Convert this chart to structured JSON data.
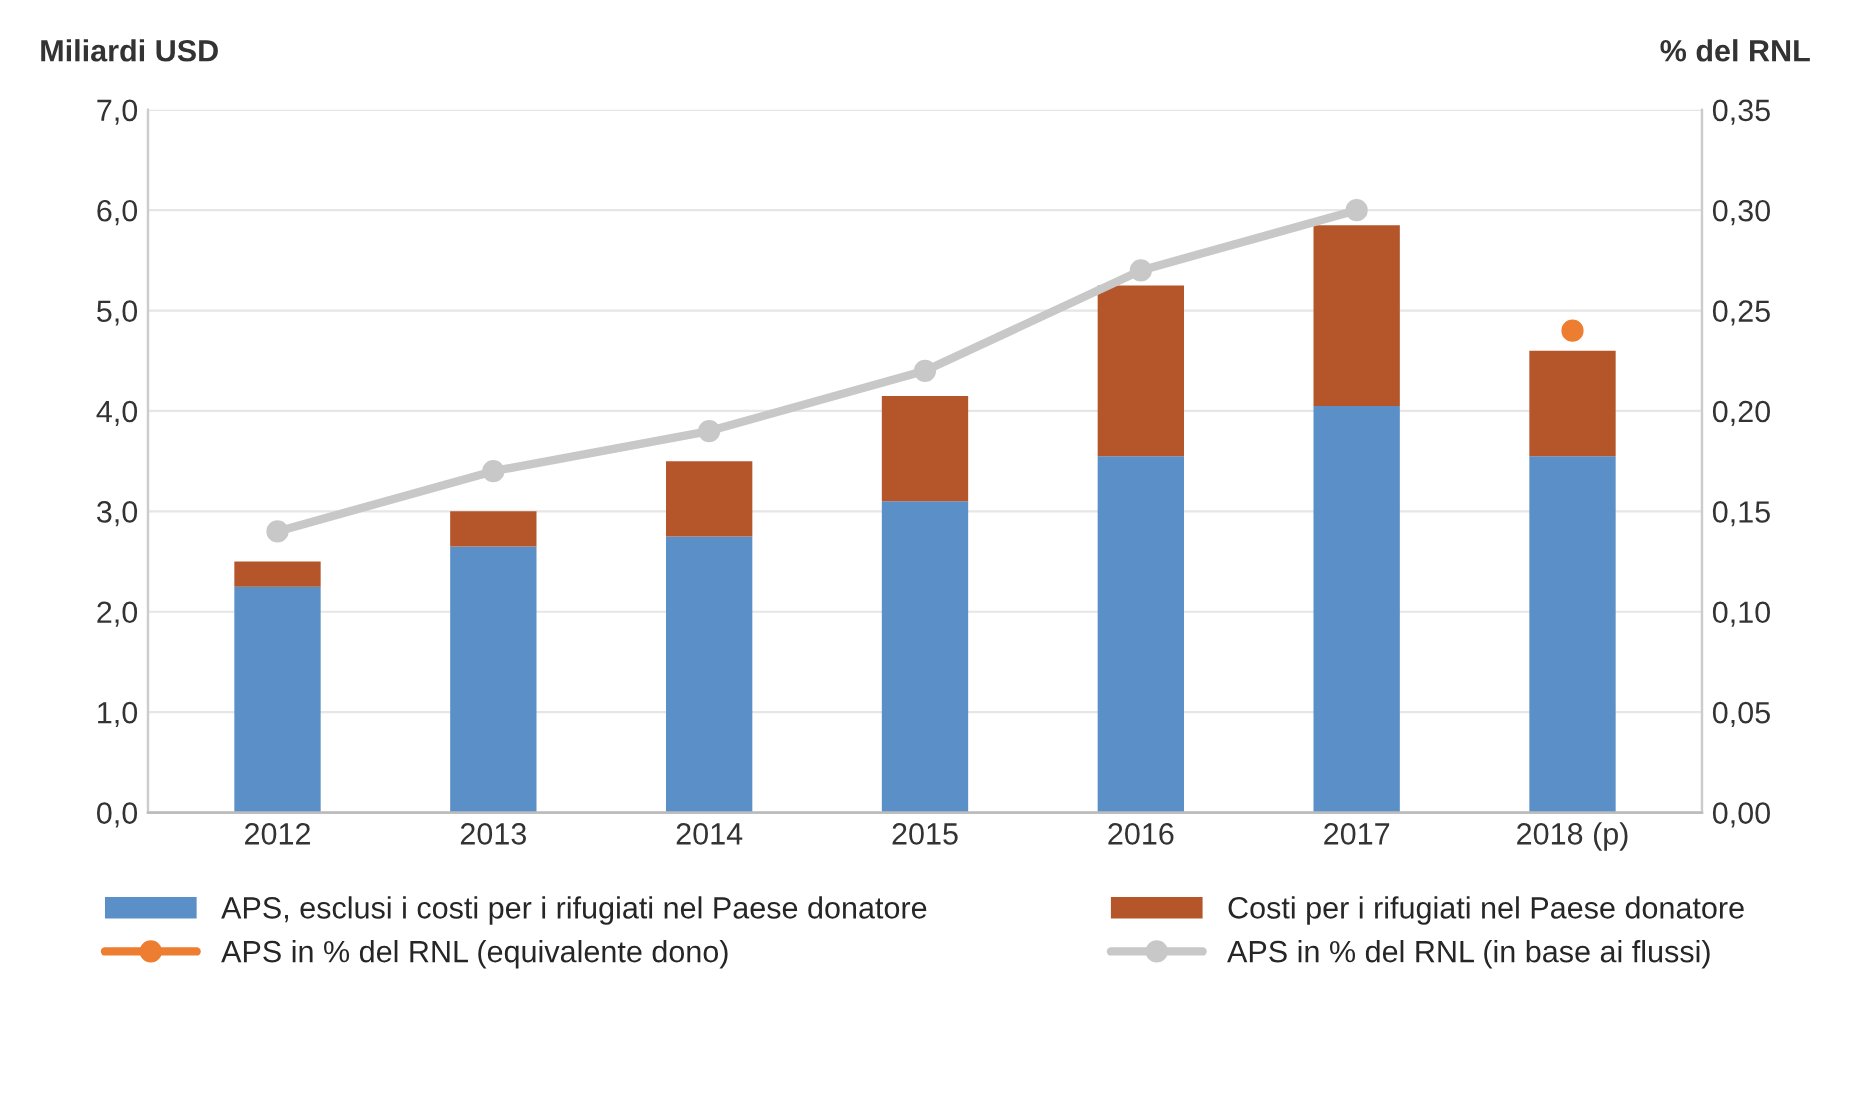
{
  "chart_data": {
    "type": "bar",
    "stacked": true,
    "ylabel": "Miliardi USD",
    "y2label": "% del RNL",
    "categories": [
      "2012",
      "2013",
      "2014",
      "2015",
      "2016",
      "2017",
      "2018 (p)"
    ],
    "series": [
      {
        "name": "APS, esclusi i costi per i rifugiati nel Paese donatore",
        "color": "#5b8fc7",
        "values": [
          2.25,
          2.65,
          2.75,
          3.1,
          3.55,
          4.05,
          3.55
        ]
      },
      {
        "name": "Costi per i rifugiati nel Paese donatore",
        "color": "#b5562a",
        "values": [
          0.25,
          0.35,
          0.75,
          1.05,
          1.7,
          1.8,
          1.05
        ]
      },
      {
        "name": "APS in % del RNL (equivalente dono)",
        "type": "line",
        "axis": "y2",
        "marker": "circle",
        "color": "#ed7d31",
        "values": [
          null,
          null,
          null,
          null,
          null,
          null,
          0.24
        ]
      },
      {
        "name": "APS in % del RNL (in base ai flussi)",
        "type": "line",
        "axis": "y2",
        "marker": "circle",
        "color": "#c8c8c8",
        "values": [
          0.14,
          0.17,
          0.19,
          0.22,
          0.27,
          0.3,
          null
        ]
      }
    ],
    "ylim": [
      0,
      7
    ],
    "yticks": [
      {
        "value": 0,
        "label": "0,0"
      },
      {
        "value": 1,
        "label": "1,0"
      },
      {
        "value": 2,
        "label": "2,0"
      },
      {
        "value": 3,
        "label": "3,0"
      },
      {
        "value": 4,
        "label": "4,0"
      },
      {
        "value": 5,
        "label": "5,0"
      },
      {
        "value": 6,
        "label": "6,0"
      },
      {
        "value": 7,
        "label": "7,0"
      }
    ],
    "y2lim": [
      0,
      0.35
    ],
    "y2ticks": [
      {
        "value": 0,
        "label": "0,00"
      },
      {
        "value": 0.05,
        "label": "0,05"
      },
      {
        "value": 0.1,
        "label": "0,10"
      },
      {
        "value": 0.15,
        "label": "0,15"
      },
      {
        "value": 0.2,
        "label": "0,20"
      },
      {
        "value": 0.25,
        "label": "0,25"
      },
      {
        "value": 0.3,
        "label": "0,30"
      },
      {
        "value": 0.35,
        "label": "0,35"
      }
    ],
    "grid": "y",
    "legend": "bottom"
  }
}
